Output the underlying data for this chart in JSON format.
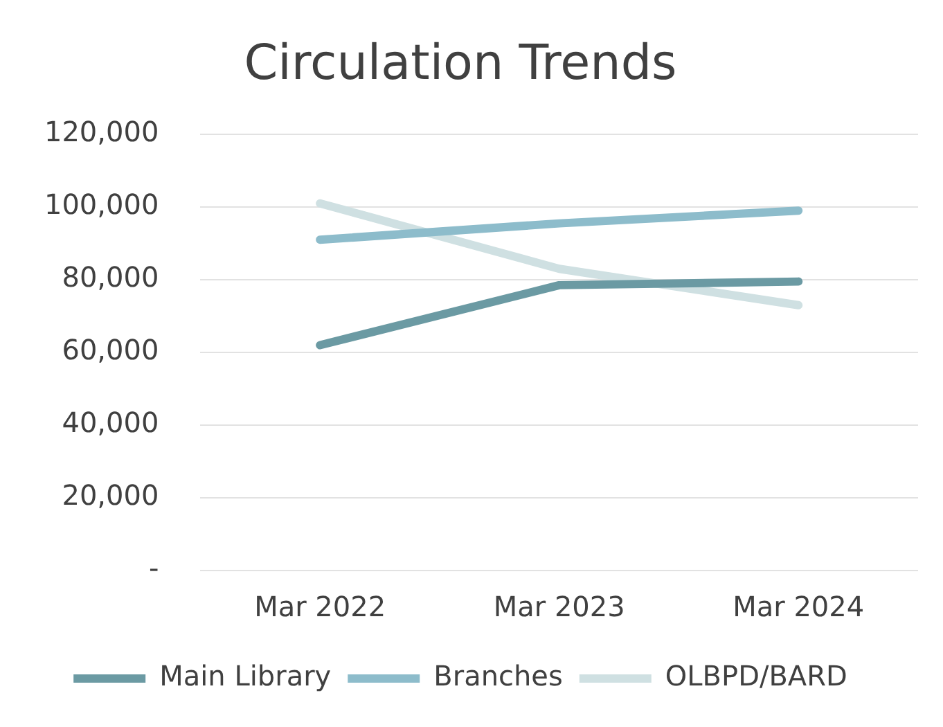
{
  "chart_data": {
    "type": "line",
    "title": "Circulation Trends",
    "categories": [
      "Mar 2022",
      "Mar 2023",
      "Mar 2024"
    ],
    "series": [
      {
        "name": "Main Library",
        "color": "#6b9aa3",
        "values": [
          62000,
          78500,
          79500
        ]
      },
      {
        "name": "Branches",
        "color": "#8dbccb",
        "values": [
          91000,
          95500,
          99000
        ]
      },
      {
        "name": "OLBPD/BARD",
        "color": "#cfe0e2",
        "values": [
          101000,
          83000,
          73000
        ]
      }
    ],
    "ylim": [
      0,
      120000
    ],
    "yticks": [
      {
        "value": 0,
        "label": "-"
      },
      {
        "value": 20000,
        "label": "20,000"
      },
      {
        "value": 40000,
        "label": "40,000"
      },
      {
        "value": 60000,
        "label": "60,000"
      },
      {
        "value": 80000,
        "label": "80,000"
      },
      {
        "value": 100000,
        "label": "100,000"
      },
      {
        "value": 120000,
        "label": "120,000"
      }
    ],
    "grid": "y",
    "legend": "bottom"
  }
}
